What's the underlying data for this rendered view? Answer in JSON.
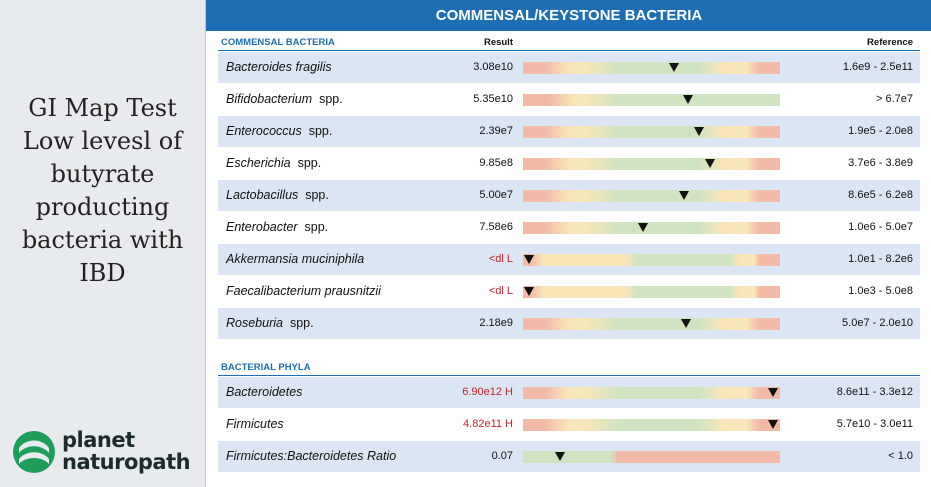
{
  "sidebar": {
    "title_lines": [
      "GI Map Test",
      "Low levesl of",
      "butyrate",
      "producting",
      "bacteria with",
      "IBD"
    ],
    "logo": {
      "line1": "planet",
      "line2": "naturopath"
    }
  },
  "report": {
    "title": "COMMENSAL/KEYSTONE BACTERIA",
    "result_header": "Result",
    "reference_header": "Reference",
    "sections": [
      {
        "heading": "COMMENSAL BACTERIA",
        "rows": [
          {
            "name": "Bacteroides fragilis",
            "result": "3.08e10",
            "reference": "1.6e9 - 2.5e11"
          },
          {
            "name": "Bifidobacterium",
            "suffix": "spp.",
            "result": "5.35e10",
            "reference": "> 6.7e7"
          },
          {
            "name": "Enterococcus",
            "suffix": "spp.",
            "result": "2.39e7",
            "reference": "1.9e5 - 2.0e8"
          },
          {
            "name": "Escherichia",
            "suffix": "spp.",
            "result": "9.85e8",
            "reference": "3.7e6 - 3.8e9"
          },
          {
            "name": "Lactobacillus",
            "suffix": "spp.",
            "result": "5.00e7",
            "reference": "8.6e5 - 6.2e8"
          },
          {
            "name": "Enterobacter",
            "suffix": "spp.",
            "result": "7.58e6",
            "reference": "1.0e6 - 5.0e7"
          },
          {
            "name": "Akkermansia muciniphila",
            "result": "<dl L",
            "flag": true,
            "reference": "1.0e1 - 8.2e6"
          },
          {
            "name": "Faecalibacterium prausnitzii",
            "result": "<dl L",
            "flag": true,
            "reference": "1.0e3 - 5.0e8"
          },
          {
            "name": "Roseburia",
            "suffix": "spp.",
            "result": "2.18e9",
            "reference": "5.0e7 - 2.0e10"
          }
        ]
      },
      {
        "heading": "BACTERIAL PHYLA",
        "rows": [
          {
            "name": "Bacteroidetes",
            "result": "6.90e12 H",
            "flag": true,
            "reference": "8.6e11 - 3.3e12"
          },
          {
            "name": "Firmicutes",
            "result": "4.82e11 H",
            "flag": true,
            "reference": "5.7e10 - 3.0e11"
          },
          {
            "name": "Firmicutes:Bacteroidetes Ratio",
            "result": "0.07",
            "reference": "< 1.0"
          }
        ]
      }
    ]
  }
}
